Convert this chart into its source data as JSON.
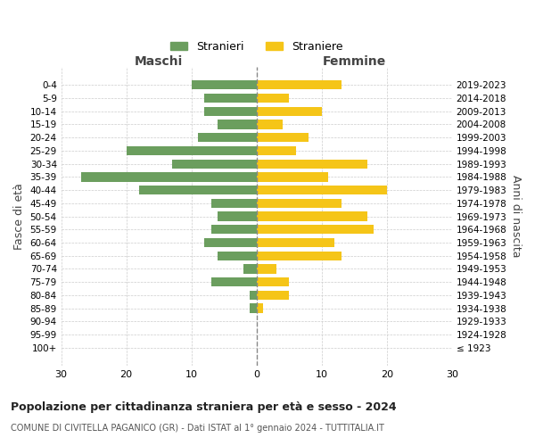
{
  "age_groups": [
    "100+",
    "95-99",
    "90-94",
    "85-89",
    "80-84",
    "75-79",
    "70-74",
    "65-69",
    "60-64",
    "55-59",
    "50-54",
    "45-49",
    "40-44",
    "35-39",
    "30-34",
    "25-29",
    "20-24",
    "15-19",
    "10-14",
    "5-9",
    "0-4"
  ],
  "birth_years": [
    "≤ 1923",
    "1924-1928",
    "1929-1933",
    "1934-1938",
    "1939-1943",
    "1944-1948",
    "1949-1953",
    "1954-1958",
    "1959-1963",
    "1964-1968",
    "1969-1973",
    "1974-1978",
    "1979-1983",
    "1984-1988",
    "1989-1993",
    "1994-1998",
    "1999-2003",
    "2004-2008",
    "2009-2013",
    "2014-2018",
    "2019-2023"
  ],
  "males": [
    0,
    0,
    0,
    1,
    1,
    7,
    2,
    6,
    8,
    7,
    6,
    7,
    18,
    27,
    13,
    20,
    9,
    6,
    8,
    8,
    10
  ],
  "females": [
    0,
    0,
    0,
    1,
    5,
    5,
    3,
    13,
    12,
    18,
    17,
    13,
    20,
    11,
    17,
    6,
    8,
    4,
    10,
    5,
    13
  ],
  "male_color": "#6b9e5e",
  "female_color": "#f5c518",
  "background_color": "#ffffff",
  "grid_color": "#cccccc",
  "center_line_color": "#888888",
  "title": "Popolazione per cittadinanza straniera per età e sesso - 2024",
  "subtitle": "COMUNE DI CIVITELLA PAGANICO (GR) - Dati ISTAT al 1° gennaio 2024 - TUTTITALIA.IT",
  "left_label": "Maschi",
  "right_label": "Femmine",
  "ylabel": "Fasce di età",
  "right_ylabel": "Anni di nascita",
  "legend_male": "Stranieri",
  "legend_female": "Straniere",
  "xlim": 30
}
